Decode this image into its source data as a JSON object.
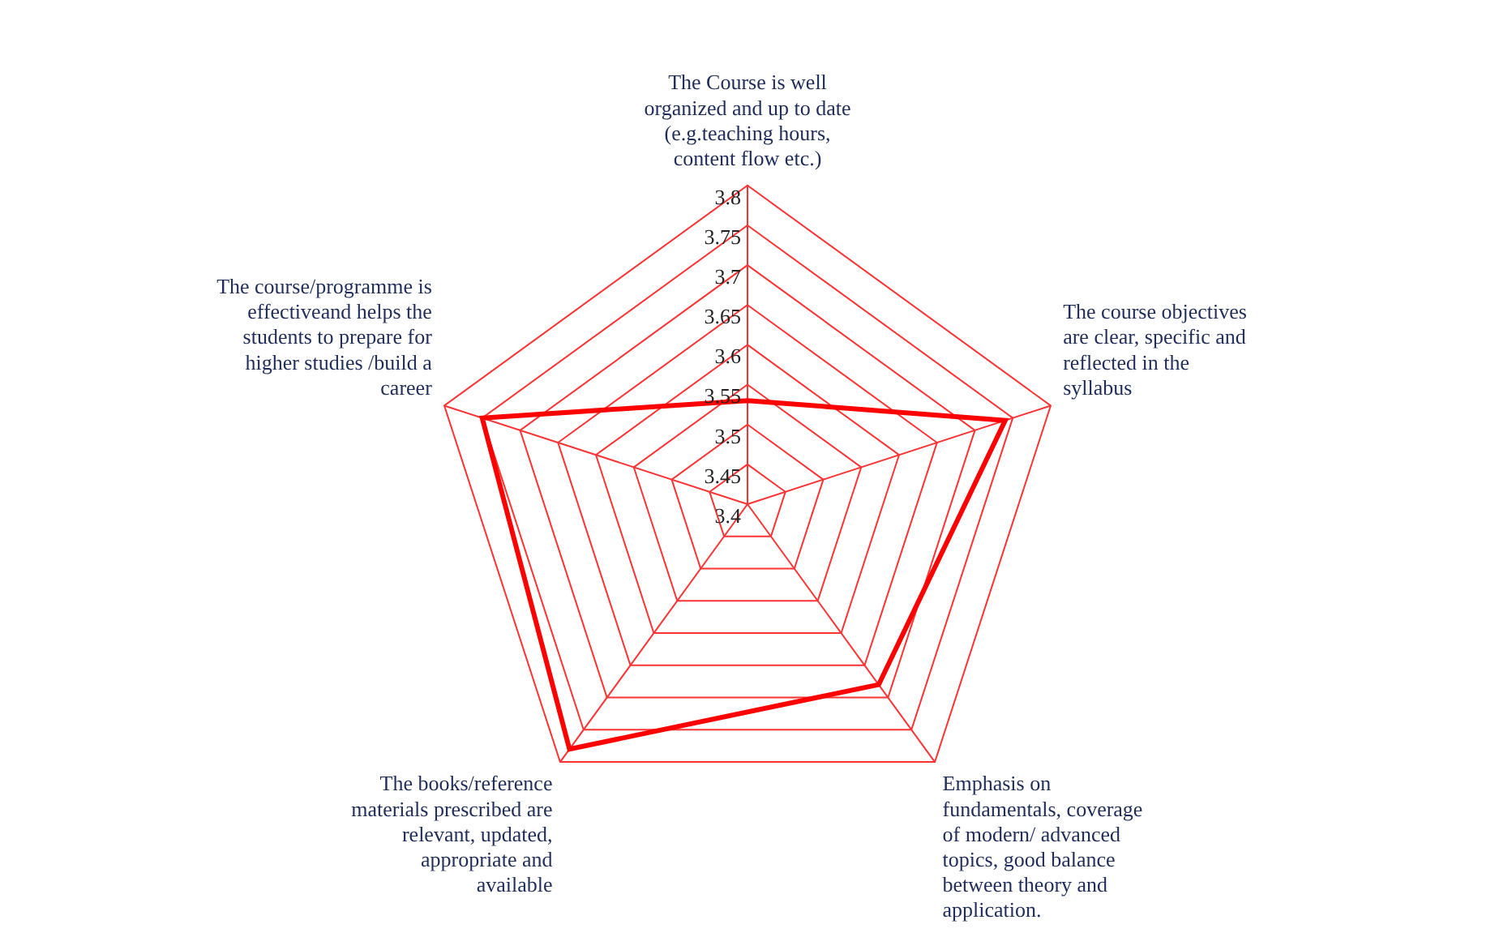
{
  "chart_data": {
    "type": "radar",
    "categories": [
      "The Course is well organized and up to date (e.g.teaching hours, content flow etc.)",
      "The course objectives are clear, specific and reflected in the syllabus",
      "Emphasis on fundamentals, coverage of modern/ advanced topics, good balance between theory and application.",
      "The books/reference materials prescribed are relevant, updated, appropriate and available",
      "The course/programme is effectiveand helps the students to prepare for higher studies /build a career"
    ],
    "series": [
      {
        "color": "#ff0000",
        "values": [
          3.53,
          3.74,
          3.68,
          3.78,
          3.75
        ]
      }
    ],
    "ylim": [
      3.4,
      3.8
    ],
    "yticks": [
      3.4,
      3.45,
      3.5,
      3.55,
      3.6,
      3.65,
      3.7,
      3.75,
      3.8
    ],
    "grid": true,
    "legend": false,
    "marker": "none"
  }
}
